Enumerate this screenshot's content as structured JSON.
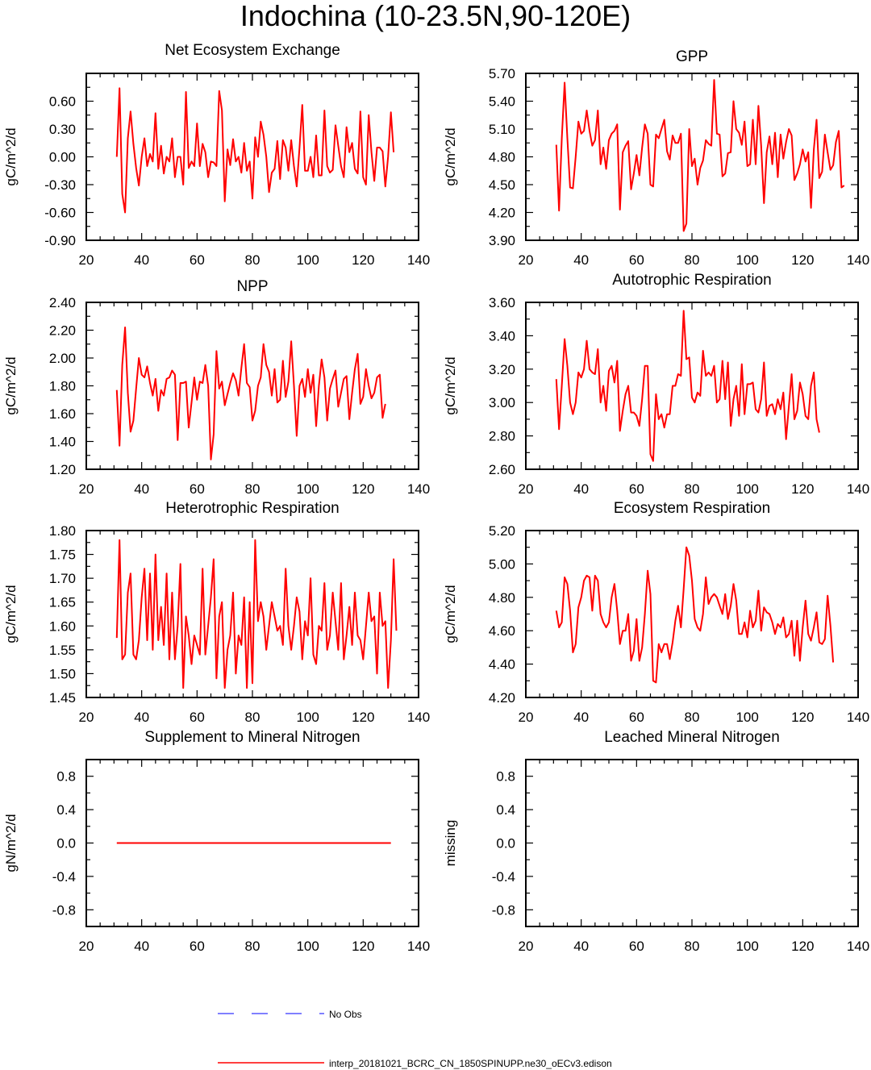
{
  "title": "Indochina (10-23.5N,90-120E)",
  "legend": {
    "obs_label": "No Obs",
    "obs_color": "#0000ff",
    "model_label": "interp_20181021_BCRC_CN_1850SPINUPP.ne30_oECv3.edison",
    "model_color": "#ff0000"
  },
  "chart_data": [
    {
      "type": "line",
      "title": "Net Ecosystem Exchange",
      "xlabel": "",
      "ylabel": "gC/m^2/d",
      "xlim": [
        20,
        140
      ],
      "xticks": [
        20,
        40,
        60,
        80,
        100,
        120,
        140
      ],
      "ylim": [
        -0.9,
        0.9
      ],
      "yticks": [
        -0.9,
        -0.6,
        -0.3,
        0.0,
        0.3,
        0.6
      ],
      "ytick_labels": [
        "-0.90",
        "-0.60",
        "-0.30",
        "0.00",
        "0.30",
        "0.60"
      ],
      "series": [
        {
          "name": "interp_20181021_BCRC_CN_1850SPINUPP.ne30_oECv3.edison",
          "color": "#ff0000",
          "x_start": 31,
          "values": [
            0.0,
            0.74,
            -0.4,
            -0.6,
            0.2,
            0.49,
            0.14,
            -0.12,
            -0.31,
            0.0,
            0.2,
            -0.1,
            0.03,
            -0.05,
            0.47,
            -0.13,
            0.12,
            -0.18,
            0.0,
            -0.05,
            0.2,
            -0.22,
            0.0,
            0.0,
            -0.3,
            0.7,
            -0.12,
            -0.05,
            -0.1,
            0.36,
            -0.1,
            0.14,
            0.05,
            -0.22,
            -0.05,
            -0.06,
            -0.1,
            0.71,
            0.5,
            -0.48,
            0.08,
            -0.09,
            0.19,
            -0.05,
            0.0,
            -0.17,
            0.15,
            -0.15,
            -0.05,
            -0.45,
            0.21,
            0.0,
            0.38,
            0.24,
            0.0,
            -0.38,
            -0.17,
            -0.13,
            0.17,
            -0.24,
            0.18,
            0.1,
            -0.15,
            0.18,
            -0.1,
            -0.32,
            0.1,
            0.56,
            -0.15,
            -0.15,
            0.0,
            -0.22,
            0.23,
            -0.2,
            -0.2,
            0.5,
            -0.1,
            -0.17,
            -0.14,
            0.34,
            0.12,
            -0.1,
            -0.22,
            0.32,
            0.05,
            0.15,
            -0.13,
            -0.18,
            0.49,
            -0.22,
            -0.3,
            0.45,
            0.05,
            -0.26,
            0.1,
            0.1,
            0.06,
            -0.32,
            0.0,
            0.48,
            0.05
          ]
        }
      ]
    },
    {
      "type": "line",
      "title": "GPP",
      "xlabel": "",
      "ylabel": "gC/m^2/d",
      "xlim": [
        20,
        140
      ],
      "xticks": [
        20,
        40,
        60,
        80,
        100,
        120,
        140
      ],
      "ylim": [
        3.9,
        5.7
      ],
      "yticks": [
        3.9,
        4.2,
        4.5,
        4.8,
        5.1,
        5.4,
        5.7
      ],
      "ytick_labels": [
        "3.90",
        "4.20",
        "4.50",
        "4.80",
        "5.10",
        "5.40",
        "5.70"
      ],
      "series": [
        {
          "name": "interp_20181021_BCRC_CN_1850SPINUPP.ne30_oECv3.edison",
          "color": "#ff0000",
          "x_start": 31,
          "values": [
            4.93,
            4.22,
            5.0,
            5.6,
            5.0,
            4.47,
            4.46,
            4.8,
            5.18,
            5.05,
            5.08,
            5.3,
            5.08,
            4.92,
            4.98,
            5.3,
            4.72,
            4.9,
            4.67,
            4.98,
            5.05,
            5.08,
            5.15,
            4.23,
            4.85,
            4.92,
            4.97,
            4.45,
            4.62,
            4.82,
            4.6,
            4.9,
            5.15,
            5.05,
            4.5,
            4.48,
            5.04,
            5.0,
            5.1,
            5.2,
            4.86,
            4.77,
            5.03,
            4.95,
            4.95,
            5.05,
            4.0,
            4.08,
            5.1,
            4.7,
            4.78,
            4.5,
            4.68,
            4.76,
            4.98,
            4.94,
            4.92,
            5.63,
            5.05,
            5.04,
            4.59,
            4.62,
            4.84,
            4.85,
            5.4,
            5.1,
            5.06,
            4.93,
            5.18,
            4.7,
            4.72,
            5.2,
            4.72,
            5.35,
            4.92,
            4.3,
            4.85,
            5.02,
            4.72,
            5.06,
            4.58,
            5.04,
            4.78,
            4.96,
            5.1,
            5.03,
            4.55,
            4.62,
            4.72,
            4.88,
            4.75,
            4.85,
            4.25,
            4.88,
            5.2,
            4.57,
            4.64,
            5.04,
            4.85,
            4.66,
            4.71,
            4.96,
            5.08,
            4.47,
            4.49
          ]
        }
      ]
    },
    {
      "type": "line",
      "title": "NPP",
      "xlabel": "",
      "ylabel": "gC/m^2/d",
      "xlim": [
        20,
        140
      ],
      "xticks": [
        20,
        40,
        60,
        80,
        100,
        120,
        140
      ],
      "ylim": [
        1.2,
        2.4
      ],
      "yticks": [
        1.2,
        1.4,
        1.6,
        1.8,
        2.0,
        2.2,
        2.4
      ],
      "ytick_labels": [
        "1.20",
        "1.40",
        "1.60",
        "1.80",
        "2.00",
        "2.20",
        "2.40"
      ],
      "series": [
        {
          "name": "interp_20181021_BCRC_CN_1850SPINUPP.ne30_oECv3.edison",
          "color": "#ff0000",
          "x_start": 31,
          "values": [
            1.77,
            1.37,
            1.95,
            2.22,
            1.75,
            1.47,
            1.55,
            1.78,
            2.0,
            1.88,
            1.86,
            1.94,
            1.82,
            1.73,
            1.85,
            1.62,
            1.77,
            1.73,
            1.85,
            1.86,
            1.91,
            1.88,
            1.41,
            1.82,
            1.82,
            1.83,
            1.5,
            1.68,
            1.86,
            1.7,
            1.83,
            1.82,
            1.95,
            1.8,
            1.27,
            1.45,
            2.05,
            1.78,
            1.83,
            1.66,
            1.74,
            1.82,
            1.89,
            1.84,
            1.73,
            1.93,
            2.1,
            1.82,
            1.79,
            1.55,
            1.62,
            1.8,
            1.86,
            2.1,
            1.95,
            1.9,
            1.73,
            1.92,
            1.68,
            1.7,
            1.98,
            1.72,
            1.83,
            2.12,
            1.8,
            1.44,
            1.8,
            1.85,
            1.72,
            1.92,
            1.75,
            1.88,
            1.51,
            1.8,
            1.99,
            1.86,
            1.55,
            1.78,
            1.85,
            1.91,
            1.65,
            1.75,
            1.85,
            1.87,
            1.56,
            1.75,
            1.92,
            2.03,
            1.67,
            1.72,
            1.92,
            1.8,
            1.71,
            1.75,
            1.86,
            1.88,
            1.57,
            1.67
          ]
        }
      ]
    },
    {
      "type": "line",
      "title": "Autotrophic Respiration",
      "xlabel": "",
      "ylabel": "gC/m^2/d",
      "xlim": [
        20,
        140
      ],
      "xticks": [
        20,
        40,
        60,
        80,
        100,
        120,
        140
      ],
      "ylim": [
        2.6,
        3.6
      ],
      "yticks": [
        2.6,
        2.8,
        3.0,
        3.2,
        3.4,
        3.6
      ],
      "ytick_labels": [
        "2.60",
        "2.80",
        "3.00",
        "3.20",
        "3.40",
        "3.60"
      ],
      "series": [
        {
          "name": "interp_20181021_BCRC_CN_1850SPINUPP.ne30_oECv3.edison",
          "color": "#ff0000",
          "x_start": 31,
          "values": [
            3.14,
            2.84,
            3.1,
            3.38,
            3.22,
            3.0,
            2.93,
            3.0,
            3.18,
            3.15,
            3.2,
            3.37,
            3.2,
            3.18,
            3.17,
            3.32,
            3.0,
            3.1,
            2.95,
            3.19,
            3.22,
            3.12,
            3.25,
            2.83,
            2.95,
            3.05,
            3.1,
            2.94,
            2.94,
            2.92,
            2.86,
            3.02,
            3.22,
            3.22,
            2.69,
            2.65,
            3.05,
            2.9,
            2.93,
            2.85,
            2.93,
            2.93,
            3.1,
            3.1,
            3.17,
            3.16,
            3.55,
            3.26,
            3.27,
            3.03,
            3.0,
            3.06,
            3.04,
            3.31,
            3.16,
            3.18,
            3.16,
            3.22,
            3.0,
            3.02,
            3.25,
            3.02,
            3.24,
            2.86,
            3.02,
            3.1,
            2.92,
            3.23,
            2.93,
            3.11,
            3.11,
            3.12,
            2.96,
            2.94,
            3.02,
            3.24,
            2.92,
            2.98,
            2.99,
            2.93,
            3.02,
            2.96,
            3.06,
            2.78,
            2.98,
            3.17,
            2.9,
            2.95,
            3.12,
            3.05,
            2.92,
            2.9,
            3.1,
            3.18,
            2.9,
            2.82
          ]
        }
      ]
    },
    {
      "type": "line",
      "title": "Heterotrophic Respiration",
      "xlabel": "",
      "ylabel": "gC/m^2/d",
      "xlim": [
        20,
        140
      ],
      "xticks": [
        20,
        40,
        60,
        80,
        100,
        120,
        140
      ],
      "ylim": [
        1.45,
        1.8
      ],
      "yticks": [
        1.45,
        1.5,
        1.55,
        1.6,
        1.65,
        1.7,
        1.75,
        1.8
      ],
      "ytick_labels": [
        "1.45",
        "1.50",
        "1.55",
        "1.60",
        "1.65",
        "1.70",
        "1.75",
        "1.80"
      ],
      "series": [
        {
          "name": "interp_20181021_BCRC_CN_1850SPINUPP.ne30_oECv3.edison",
          "color": "#ff0000",
          "x_start": 31,
          "values": [
            1.575,
            1.78,
            1.53,
            1.54,
            1.67,
            1.71,
            1.54,
            1.53,
            1.57,
            1.66,
            1.72,
            1.57,
            1.71,
            1.55,
            1.75,
            1.57,
            1.64,
            1.56,
            1.71,
            1.53,
            1.67,
            1.53,
            1.6,
            1.73,
            1.47,
            1.62,
            1.58,
            1.52,
            1.58,
            1.56,
            1.54,
            1.72,
            1.54,
            1.6,
            1.66,
            1.74,
            1.49,
            1.62,
            1.65,
            1.47,
            1.55,
            1.58,
            1.67,
            1.5,
            1.58,
            1.56,
            1.66,
            1.47,
            1.65,
            1.48,
            1.78,
            1.61,
            1.65,
            1.62,
            1.55,
            1.6,
            1.65,
            1.62,
            1.59,
            1.6,
            1.56,
            1.72,
            1.6,
            1.55,
            1.6,
            1.66,
            1.63,
            1.53,
            1.61,
            1.58,
            1.7,
            1.54,
            1.52,
            1.6,
            1.59,
            1.69,
            1.55,
            1.58,
            1.67,
            1.61,
            1.55,
            1.69,
            1.53,
            1.58,
            1.64,
            1.56,
            1.67,
            1.58,
            1.57,
            1.53,
            1.6,
            1.67,
            1.61,
            1.62,
            1.5,
            1.67,
            1.6,
            1.61,
            1.47,
            1.57,
            1.74,
            1.59
          ]
        }
      ]
    },
    {
      "type": "line",
      "title": "Ecosystem Respiration",
      "xlabel": "",
      "ylabel": "gC/m^2/d",
      "xlim": [
        20,
        140
      ],
      "xticks": [
        20,
        40,
        60,
        80,
        100,
        120,
        140
      ],
      "ylim": [
        4.2,
        5.2
      ],
      "yticks": [
        4.2,
        4.4,
        4.6,
        4.8,
        5.0,
        5.2
      ],
      "ytick_labels": [
        "4.20",
        "4.40",
        "4.60",
        "4.80",
        "5.00",
        "5.20"
      ],
      "series": [
        {
          "name": "interp_20181021_BCRC_CN_1850SPINUPP.ne30_oECv3.edison",
          "color": "#ff0000",
          "x_start": 31,
          "values": [
            4.72,
            4.62,
            4.65,
            4.92,
            4.88,
            4.72,
            4.47,
            4.52,
            4.74,
            4.8,
            4.9,
            4.93,
            4.92,
            4.72,
            4.93,
            4.9,
            4.7,
            4.65,
            4.62,
            4.65,
            4.8,
            4.88,
            4.72,
            4.52,
            4.6,
            4.6,
            4.7,
            4.42,
            4.48,
            4.67,
            4.42,
            4.5,
            4.7,
            4.96,
            4.82,
            4.3,
            4.29,
            4.52,
            4.47,
            4.52,
            4.52,
            4.43,
            4.53,
            4.66,
            4.75,
            4.62,
            4.85,
            5.1,
            5.05,
            4.9,
            4.67,
            4.62,
            4.6,
            4.7,
            4.92,
            4.76,
            4.8,
            4.82,
            4.8,
            4.75,
            4.7,
            4.82,
            4.67,
            4.75,
            4.88,
            4.78,
            4.58,
            4.58,
            4.65,
            4.56,
            4.72,
            4.62,
            4.66,
            4.84,
            4.6,
            4.74,
            4.71,
            4.7,
            4.65,
            4.58,
            4.64,
            4.62,
            4.68,
            4.56,
            4.58,
            4.66,
            4.45,
            4.66,
            4.42,
            4.62,
            4.78,
            4.58,
            4.54,
            4.62,
            4.71,
            4.53,
            4.52,
            4.55,
            4.81,
            4.63,
            4.41
          ]
        }
      ]
    },
    {
      "type": "line",
      "title": "Supplement to Mineral Nitrogen",
      "xlabel": "",
      "ylabel": "gN/m^2/d",
      "xlim": [
        20,
        140
      ],
      "xticks": [
        20,
        40,
        60,
        80,
        100,
        120,
        140
      ],
      "ylim": [
        -1.0,
        1.0
      ],
      "yticks": [
        -0.8,
        -0.4,
        0.0,
        0.4,
        0.8
      ],
      "ytick_labels": [
        "-0.8",
        "-0.4",
        "0.0",
        "0.4",
        "0.8"
      ],
      "series": [
        {
          "name": "interp_20181021_BCRC_CN_1850SPINUPP.ne30_oECv3.edison",
          "color": "#ff0000",
          "x": [
            31,
            130
          ],
          "values": [
            0.0,
            0.0
          ]
        }
      ]
    },
    {
      "type": "line",
      "title": "Leached Mineral Nitrogen",
      "xlabel": "",
      "ylabel": "missing",
      "xlim": [
        20,
        140
      ],
      "xticks": [
        20,
        40,
        60,
        80,
        100,
        120,
        140
      ],
      "ylim": [
        -1.0,
        1.0
      ],
      "yticks": [
        -0.8,
        -0.4,
        0.0,
        0.4,
        0.8
      ],
      "ytick_labels": [
        "-0.8",
        "-0.4",
        "0.0",
        "0.4",
        "0.8"
      ],
      "series": []
    }
  ]
}
